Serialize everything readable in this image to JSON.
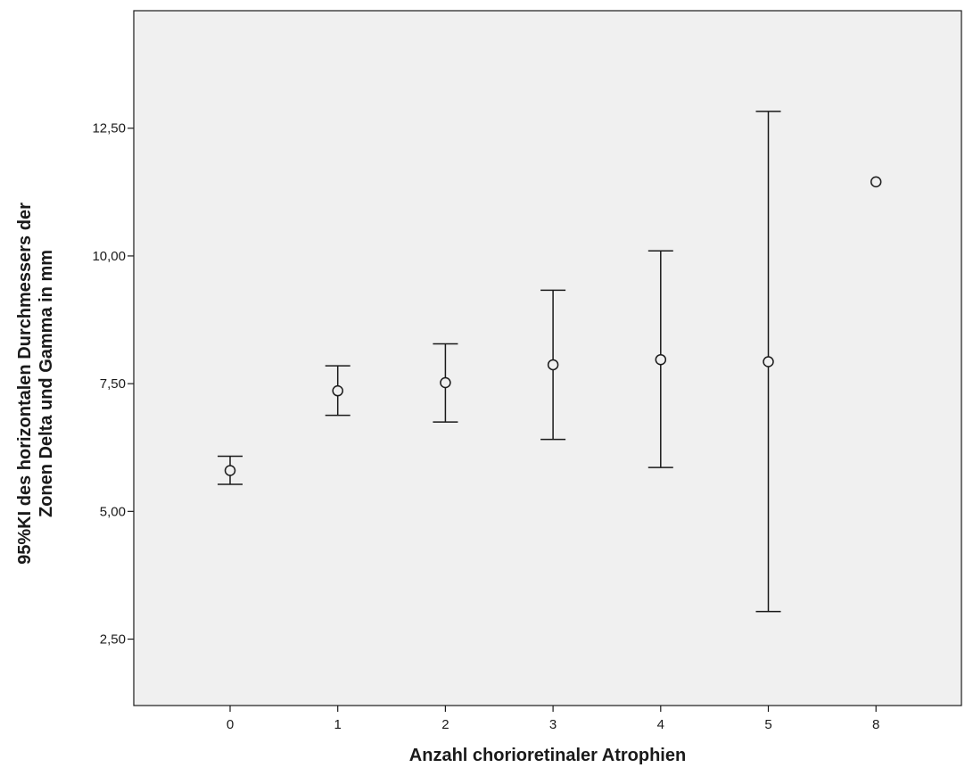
{
  "chart_data": {
    "type": "errorbar",
    "title": "",
    "xlabel": "Anzahl chorioretinaler Atrophien",
    "ylabel_lines": [
      "95%KI des horizontalen Durchmessers der",
      "Zonen Delta und Gamma in mm"
    ],
    "categories": [
      "0",
      "1",
      "2",
      "3",
      "4",
      "5",
      "8"
    ],
    "series": [
      {
        "mean": [
          5.8,
          7.36,
          7.52,
          7.87,
          7.97,
          7.93,
          11.45
        ],
        "lower": [
          5.53,
          6.88,
          6.75,
          6.41,
          5.86,
          3.04,
          null
        ],
        "upper": [
          6.08,
          7.85,
          8.28,
          9.33,
          10.1,
          12.83,
          null
        ]
      }
    ],
    "y_ticks": [
      "2,50",
      "5,00",
      "7,50",
      "10,00",
      "12,50"
    ],
    "y_tick_values": [
      2.5,
      5.0,
      7.5,
      10.0,
      12.5
    ],
    "ylim": [
      1.2,
      14.8
    ],
    "grid": false,
    "colors": {
      "plot_background": "#f0f0f0",
      "line": "#1a1a1a",
      "page_background": "#ffffff"
    }
  }
}
